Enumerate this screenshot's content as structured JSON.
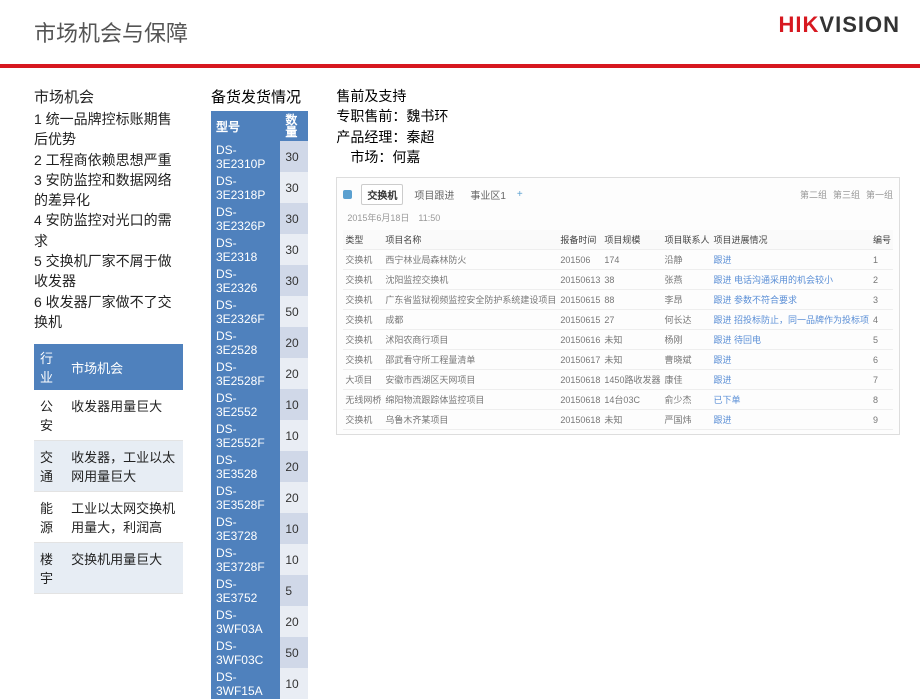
{
  "title": "市场机会与保障",
  "logo": {
    "left": "HIK",
    "right": "VISION"
  },
  "left": {
    "heading": "市场机会",
    "items": [
      "1 统一品牌控标账期售后优势",
      "2 工程商依赖思想严重",
      "3 安防监控和数据网络的差异化",
      "4 安防监控对光口的需求",
      "5 交换机厂家不屑于做收发器",
      "6 收发器厂家做不了交换机"
    ],
    "table_hdr": [
      "行业",
      "市场机会"
    ],
    "table_rows": [
      {
        "c1": "公安",
        "c2": "收发器用量巨大",
        "alt": false
      },
      {
        "c1": "交通",
        "c2": "收发器，工业以太网用量巨大",
        "alt": true
      },
      {
        "c1": "能源",
        "c2": "工业以太网交换机用量大，利润高",
        "alt": false
      },
      {
        "c1": "楼宇",
        "c2": "交换机用量巨大",
        "alt": true
      }
    ]
  },
  "mid": {
    "heading": "备货发货情况",
    "hdr": [
      "型号",
      "数量"
    ],
    "rows": [
      [
        "DS-3E2310P",
        "30"
      ],
      [
        "DS-3E2318P",
        "30"
      ],
      [
        "DS-3E2326P",
        "30"
      ],
      [
        "DS-3E2318",
        "30"
      ],
      [
        "DS-3E2326",
        "30"
      ],
      [
        "DS-3E2326F",
        "50"
      ],
      [
        "DS-3E2528",
        "20"
      ],
      [
        "DS-3E2528F",
        "20"
      ],
      [
        "DS-3E2552",
        "10"
      ],
      [
        "DS-3E2552F",
        "10"
      ],
      [
        "DS-3E3528",
        "20"
      ],
      [
        "DS-3E3528F",
        "20"
      ],
      [
        "DS-3E3728",
        "10"
      ],
      [
        "DS-3E3728F",
        "10"
      ],
      [
        "DS-3E3752",
        "5"
      ],
      [
        "DS-3WF03A",
        "20"
      ],
      [
        "DS-3WF03C",
        "50"
      ],
      [
        "DS-3WF15A",
        "10"
      ]
    ]
  },
  "right": {
    "heading": "售前及支持",
    "lines": [
      "专职售前：魏书环",
      "产品经理：秦超",
      "　市场：何嘉"
    ],
    "tabs": {
      "main": "交换机",
      "sub1": "项目跟进",
      "sub2": "事业区1",
      "g1": "第二组",
      "g2": "第三组",
      "g3": "第一组"
    },
    "date": "2015年6月18日　11:50",
    "cols": [
      "类型",
      "项目名称",
      "报备时间",
      "项目规模",
      "项目联系人",
      "项目进展情况",
      "编号"
    ],
    "rows": [
      [
        "交换机",
        "西宁林业局森林防火",
        "201506",
        "174",
        "沿静",
        "跟进",
        "1"
      ],
      [
        "交换机",
        "沈阳监控交换机",
        "20150613",
        "38",
        "张燕",
        "跟进 电话沟通采用的机会较小",
        "2"
      ],
      [
        "交换机",
        "广东省监狱视频监控安全防护系统建设项目",
        "20150615",
        "88",
        "李昂",
        "跟进 参数不符合要求",
        "3"
      ],
      [
        "交换机",
        "成都",
        "20150615",
        "27",
        "何长达",
        "跟进 招投标防止，同一品牌作为投标项",
        "4"
      ],
      [
        "交换机",
        "沭阳农商行项目",
        "20150616",
        "未知",
        "杨刚",
        "跟进 待回电",
        "5"
      ],
      [
        "交换机",
        "邵武看守所工程量清单",
        "20150617",
        "未知",
        "曹晓斌",
        "跟进",
        "6"
      ],
      [
        "大项目",
        "安徽市西湖区天网项目",
        "20150618",
        "1450路收发器",
        "康佳",
        "跟进",
        "7"
      ],
      [
        "无线网桥",
        "绵阳物流跟踪体监控项目",
        "20150618",
        "14台03C",
        "俞少杰",
        "已下单",
        "8"
      ],
      [
        "交换机",
        "乌鲁木齐某项目",
        "20150618",
        "未知",
        "严国炜",
        "跟进",
        "9"
      ]
    ]
  }
}
